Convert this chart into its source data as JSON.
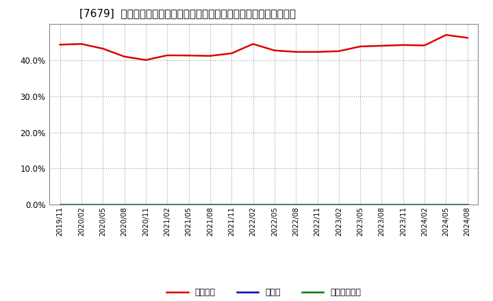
{
  "title": "[7679]  自己資本、のれん、繰延税金資産の総資産に対する比率の推移",
  "background_color": "#ffffff",
  "plot_bg_color": "#ffffff",
  "grid_color": "#999999",
  "x_labels": [
    "2019/11",
    "2020/02",
    "2020/05",
    "2020/08",
    "2020/11",
    "2021/02",
    "2021/05",
    "2021/08",
    "2021/11",
    "2022/02",
    "2022/05",
    "2022/08",
    "2022/11",
    "2023/02",
    "2023/05",
    "2023/08",
    "2023/11",
    "2024/02",
    "2024/05",
    "2024/08"
  ],
  "equity_ratio": [
    0.443,
    0.445,
    0.432,
    0.41,
    0.4005,
    0.4135,
    0.413,
    0.412,
    0.419,
    0.445,
    0.427,
    0.423,
    0.423,
    0.425,
    0.438,
    0.44,
    0.442,
    0.441,
    0.47,
    0.462
  ],
  "goodwill_ratio": [
    0.0,
    0.0,
    0.0,
    0.0,
    0.0,
    0.0,
    0.0,
    0.0,
    0.0,
    0.0,
    0.0,
    0.0,
    0.0,
    0.0,
    0.0,
    0.0,
    0.0,
    0.0,
    0.0,
    0.0
  ],
  "deferred_tax_ratio": [
    0.0,
    0.0,
    0.0,
    0.0,
    0.0,
    0.0,
    0.0,
    0.0,
    0.0,
    0.0,
    0.0,
    0.0,
    0.0,
    0.0,
    0.0,
    0.0,
    0.0,
    0.0,
    0.0,
    0.0
  ],
  "line_color_equity": "#dd0000",
  "line_color_goodwill": "#0000bb",
  "line_color_deferred": "#007700",
  "legend_label_equity": "自己資本",
  "legend_label_goodwill": "のれん",
  "legend_label_deferred": "繰延税金資産",
  "ylim": [
    0.0,
    0.5
  ],
  "yticks": [
    0.0,
    0.1,
    0.2,
    0.3,
    0.4
  ],
  "title_fontsize": 11
}
